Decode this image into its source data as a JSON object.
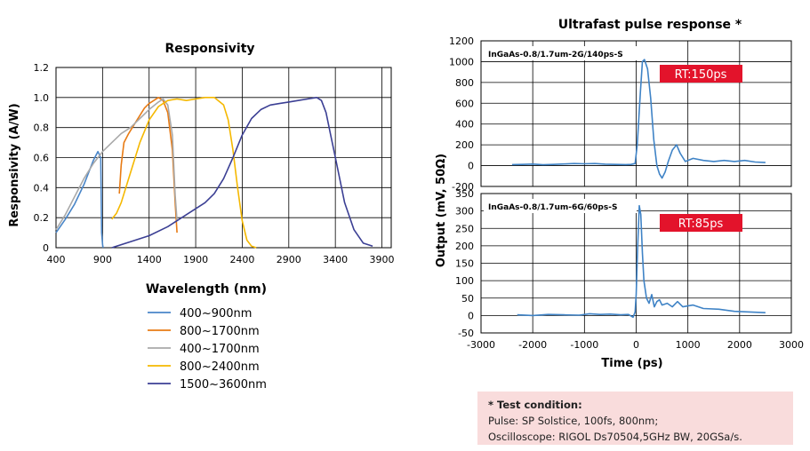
{
  "colors": {
    "s1": "#4a86c8",
    "s2": "#e87b14",
    "s3": "#a9a9a9",
    "s4": "#f5b800",
    "s5": "#3b3f94",
    "pulse": "#3f83c6",
    "badge": "#e3132b",
    "note_bg": "#f9dcdc",
    "grid": "#000000"
  },
  "chart_data": [
    {
      "type": "line",
      "title": "Responsivity",
      "xlabel": "Wavelength (nm)",
      "ylabel": "Responsivity (A/W)",
      "xlim": [
        400,
        4000
      ],
      "ylim": [
        0,
        1.2
      ],
      "xticks": [
        400,
        900,
        1400,
        1900,
        2400,
        2900,
        3400,
        3900
      ],
      "yticks": [
        0,
        0.2,
        0.4,
        0.6,
        0.8,
        1.0,
        1.2
      ],
      "xtick_labels": [
        "400",
        "900",
        "1400",
        "1900",
        "2400",
        "2900",
        "3400",
        "3900"
      ],
      "ytick_labels": [
        "0",
        "0.2",
        "0.4",
        "0.6",
        "0.8",
        "1.0",
        "1.2"
      ],
      "grid": true,
      "legend_position": "bottom",
      "series": [
        {
          "name": "400~900nm",
          "color_key": "s1",
          "x": [
            400,
            500,
            600,
            700,
            800,
            850,
            880,
            890,
            900,
            905
          ],
          "y": [
            0.1,
            0.19,
            0.29,
            0.42,
            0.58,
            0.64,
            0.6,
            0.1,
            0.02,
            0.0
          ]
        },
        {
          "name": "800~1700nm",
          "color_key": "s2",
          "x": [
            1080,
            1100,
            1130,
            1180,
            1250,
            1300,
            1350,
            1400,
            1450,
            1500,
            1550,
            1600,
            1650,
            1680,
            1700
          ],
          "y": [
            0.36,
            0.55,
            0.7,
            0.76,
            0.83,
            0.88,
            0.93,
            0.96,
            0.98,
            1.0,
            0.98,
            0.9,
            0.65,
            0.3,
            0.1
          ]
        },
        {
          "name": "400~1700nm",
          "color_key": "s3",
          "x": [
            400,
            500,
            600,
            700,
            800,
            900,
            1000,
            1100,
            1200,
            1300,
            1400,
            1500,
            1550,
            1600,
            1650,
            1680,
            1700
          ],
          "y": [
            0.12,
            0.22,
            0.34,
            0.46,
            0.56,
            0.64,
            0.7,
            0.76,
            0.8,
            0.86,
            0.92,
            0.97,
            0.99,
            0.95,
            0.75,
            0.35,
            0.18
          ]
        },
        {
          "name": "800~2400nm",
          "color_key": "s4",
          "x": [
            1000,
            1050,
            1100,
            1200,
            1300,
            1400,
            1500,
            1600,
            1700,
            1800,
            1900,
            2000,
            2100,
            2200,
            2250,
            2300,
            2350,
            2400,
            2450,
            2500,
            2550
          ],
          "y": [
            0.19,
            0.23,
            0.3,
            0.5,
            0.7,
            0.85,
            0.94,
            0.98,
            0.99,
            0.98,
            0.99,
            1.0,
            1.0,
            0.95,
            0.85,
            0.65,
            0.4,
            0.18,
            0.05,
            0.01,
            0.0
          ]
        },
        {
          "name": "1500~3600nm",
          "color_key": "s5",
          "x": [
            1000,
            1200,
            1400,
            1600,
            1800,
            2000,
            2100,
            2200,
            2300,
            2400,
            2500,
            2600,
            2700,
            2800,
            2900,
            3000,
            3100,
            3200,
            3250,
            3300,
            3350,
            3400,
            3450,
            3500,
            3600,
            3700,
            3800
          ],
          "y": [
            0.0,
            0.04,
            0.08,
            0.14,
            0.22,
            0.3,
            0.36,
            0.46,
            0.6,
            0.75,
            0.86,
            0.92,
            0.95,
            0.96,
            0.97,
            0.98,
            0.99,
            1.0,
            0.98,
            0.9,
            0.75,
            0.6,
            0.45,
            0.3,
            0.12,
            0.03,
            0.01
          ]
        }
      ]
    },
    {
      "type": "line",
      "title": "Ultrafast pulse response *",
      "label": "InGaAs-0.8/1.7um-2G/140ps-S",
      "badge": "RT:150ps",
      "xlim": [
        -3000,
        3000
      ],
      "ylim": [
        -200,
        1200
      ],
      "yticks": [
        -200,
        0,
        200,
        400,
        600,
        800,
        1000,
        1200
      ],
      "ytick_labels": [
        "-200",
        "0",
        "200",
        "400",
        "600",
        "800",
        "1000",
        "1200"
      ],
      "grid": true,
      "series": [
        {
          "name": "",
          "color_key": "pulse",
          "x": [
            -2400,
            -2200,
            -2000,
            -1800,
            -1600,
            -1400,
            -1200,
            -1000,
            -800,
            -600,
            -400,
            -200,
            -100,
            -20,
            20,
            80,
            120,
            160,
            220,
            280,
            340,
            400,
            450,
            500,
            560,
            620,
            700,
            780,
            850,
            950,
            1100,
            1300,
            1500,
            1700,
            1900,
            2100,
            2300,
            2500
          ],
          "y": [
            10,
            12,
            15,
            8,
            12,
            16,
            20,
            18,
            20,
            14,
            12,
            10,
            12,
            20,
            200,
            700,
            1000,
            1020,
            930,
            650,
            250,
            0,
            -80,
            -120,
            -60,
            40,
            150,
            200,
            120,
            40,
            70,
            50,
            40,
            50,
            40,
            50,
            35,
            30
          ]
        }
      ]
    },
    {
      "type": "line",
      "label": "InGaAs-0.8/1.7um-6G/60ps-S",
      "badge": "RT:85ps",
      "xlabel": "Time (ps)",
      "xlim": [
        -3000,
        3000
      ],
      "ylim": [
        -50,
        350
      ],
      "xticks": [
        -3000,
        -2000,
        -1000,
        0,
        1000,
        2000,
        3000
      ],
      "xtick_labels": [
        "-3000",
        "-2000",
        "-1000",
        "0",
        "1000",
        "2000",
        "3000"
      ],
      "yticks": [
        -50,
        0,
        50,
        100,
        150,
        200,
        250,
        300,
        350
      ],
      "ytick_labels": [
        "-50",
        "0",
        "50",
        "100",
        "150",
        "200",
        "250",
        "300",
        "350"
      ],
      "grid": true,
      "series": [
        {
          "name": "",
          "color_key": "pulse",
          "x": [
            -2300,
            -2000,
            -1700,
            -1400,
            -1100,
            -900,
            -700,
            -500,
            -300,
            -150,
            -60,
            -20,
            0,
            30,
            60,
            90,
            120,
            150,
            200,
            250,
            300,
            350,
            400,
            450,
            500,
            600,
            700,
            800,
            900,
            1100,
            1300,
            1600,
            1900,
            2200,
            2500
          ],
          "y": [
            2,
            0,
            3,
            2,
            1,
            5,
            3,
            4,
            2,
            3,
            -5,
            10,
            60,
            200,
            315,
            290,
            180,
            100,
            50,
            35,
            60,
            25,
            40,
            45,
            30,
            35,
            25,
            40,
            25,
            30,
            20,
            18,
            12,
            10,
            8
          ]
        }
      ]
    }
  ],
  "shared_ylabel": "Output  (mV, 50Ω)",
  "note": {
    "title": "* Test condition:",
    "line1": "Pulse: SP Solstice, 100fs, 800nm;",
    "line2": "Oscilloscope: RIGOL Ds70504,5GHz BW, 20GSa/s."
  }
}
